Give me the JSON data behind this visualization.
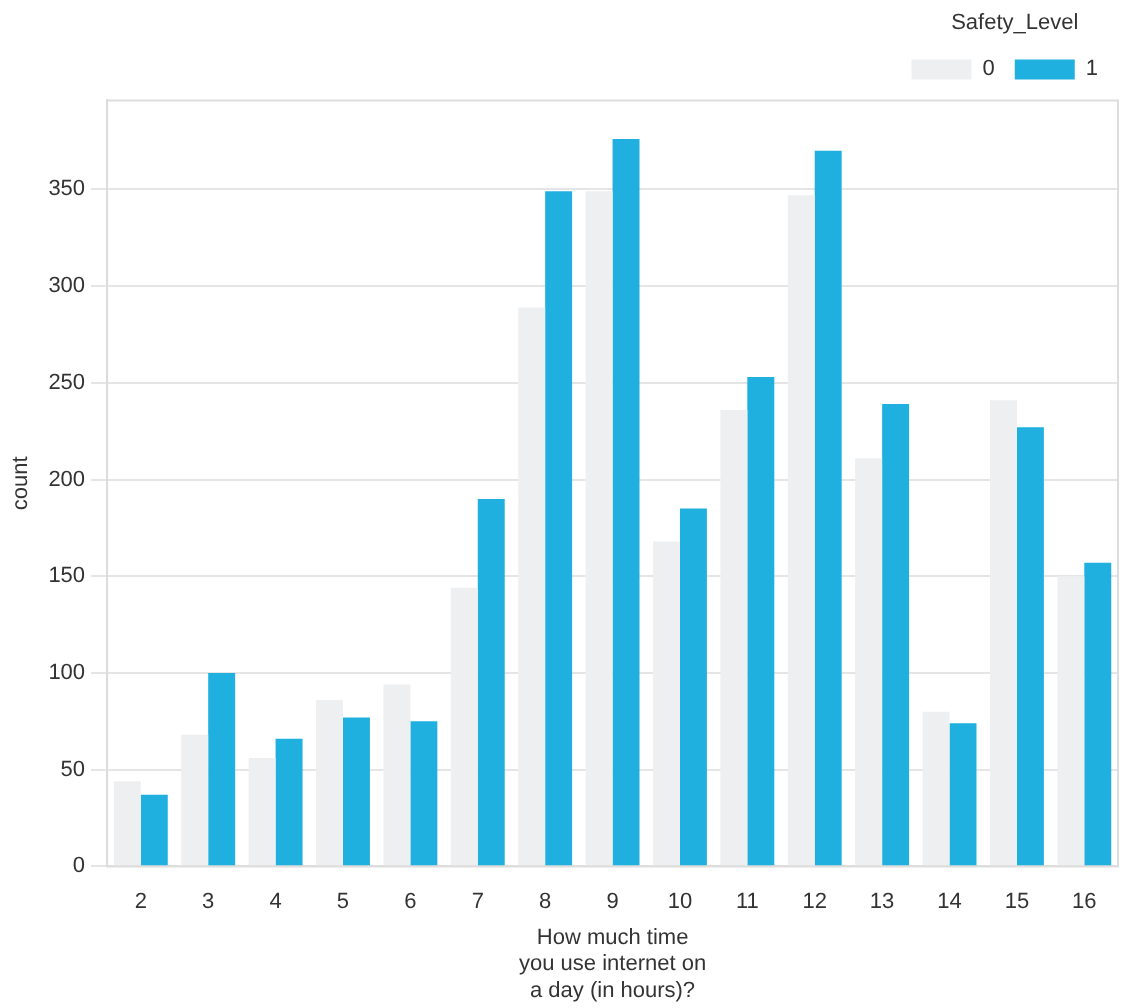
{
  "chart_data": {
    "type": "bar",
    "xlabel": "How much time\nyou use internet on\na day (in hours)?",
    "ylabel": "count",
    "legend_title": "Safety_Level",
    "categories": [
      "2",
      "3",
      "4",
      "5",
      "6",
      "7",
      "8",
      "9",
      "10",
      "11",
      "12",
      "13",
      "14",
      "15",
      "16"
    ],
    "series": [
      {
        "name": "0",
        "color": "#eeeff1",
        "values": [
          44,
          68,
          56,
          86,
          94,
          144,
          289,
          349,
          168,
          236,
          347,
          211,
          80,
          241,
          150
        ]
      },
      {
        "name": "1",
        "color": "#1fb0e0",
        "values": [
          37,
          100,
          66,
          77,
          75,
          190,
          349,
          376,
          185,
          253,
          370,
          239,
          74,
          227,
          157
        ]
      }
    ],
    "ylim": [
      0,
      396
    ],
    "yticks": [
      0,
      50,
      100,
      150,
      200,
      250,
      300,
      350
    ],
    "grid": "y",
    "legend": "top right"
  }
}
